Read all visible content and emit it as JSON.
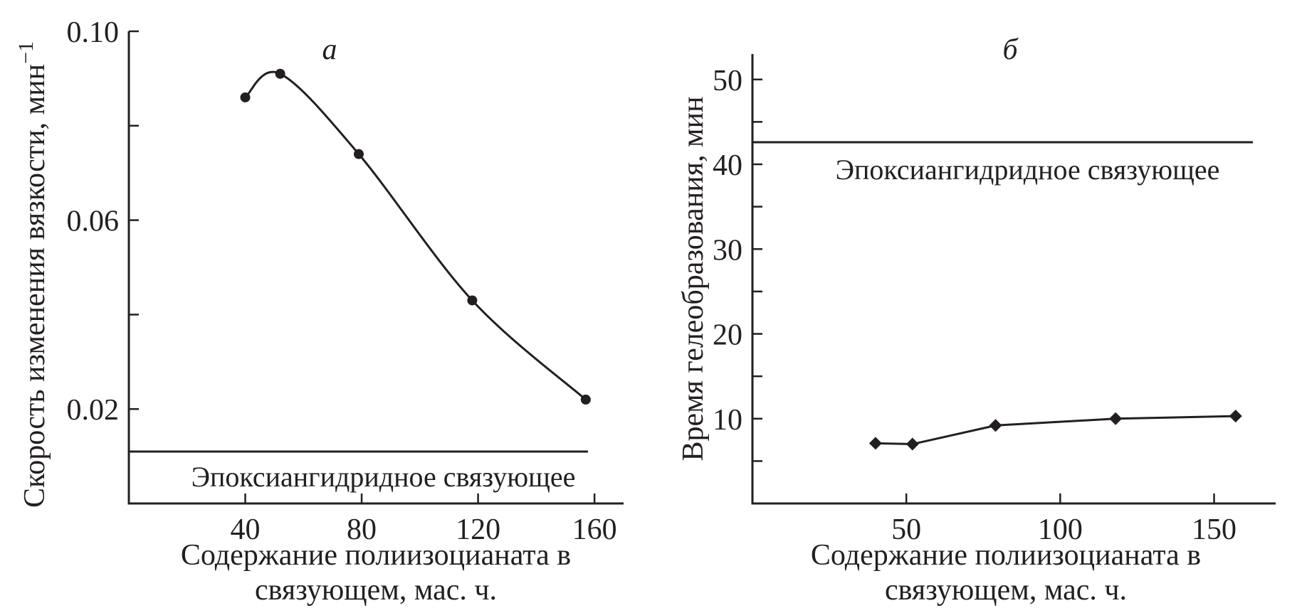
{
  "chart_data": [
    {
      "panel": "а",
      "type": "line",
      "smooth": true,
      "xlabel_lines": [
        "Содержание полиизоцианата в",
        "связующем, мас. ч."
      ],
      "ylabel": "Скорость изменения вязкости, мин",
      "ylabel_sup": "−1",
      "xlim": [
        0,
        170
      ],
      "ylim": [
        0,
        0.1
      ],
      "xticks": [
        40,
        80,
        120,
        160
      ],
      "xtick_labels": [
        "40",
        "80",
        "120",
        "160"
      ],
      "yticks": [
        0.02,
        0.04,
        0.06,
        0.08,
        0.1
      ],
      "ytick_labels": [
        "0.02",
        "",
        "0.06",
        "",
        "0.10"
      ],
      "series": [
        {
          "x": [
            40,
            52,
            79,
            118,
            157
          ],
          "y": [
            0.086,
            0.091,
            0.074,
            0.043,
            0.022
          ],
          "marker": "circle"
        }
      ],
      "reference_line": {
        "y": 0.011,
        "label": "Эпоксиангидридное связующее"
      }
    },
    {
      "panel": "б",
      "type": "line",
      "smooth": false,
      "xlabel_lines": [
        "Содержание полиизоцианата в",
        "связующем, мас. ч."
      ],
      "ylabel": "Время гелеобразования, мин",
      "xlim": [
        0,
        170
      ],
      "ylim": [
        0,
        53
      ],
      "xticks": [
        50,
        100,
        150
      ],
      "xtick_labels": [
        "50",
        "100",
        "150"
      ],
      "yticks": [
        5,
        10,
        15,
        20,
        25,
        30,
        35,
        40,
        45,
        50
      ],
      "ytick_labels": [
        "",
        "10",
        "",
        "20",
        "",
        "30",
        "",
        "40",
        "",
        "50"
      ],
      "series": [
        {
          "x": [
            40,
            52,
            79,
            118,
            157
          ],
          "y": [
            7.1,
            7.0,
            9.2,
            10.0,
            10.3
          ],
          "marker": "diamond"
        }
      ],
      "reference_line": {
        "y": 42.6,
        "label": "Эпоксиангидридное связующее"
      }
    }
  ]
}
